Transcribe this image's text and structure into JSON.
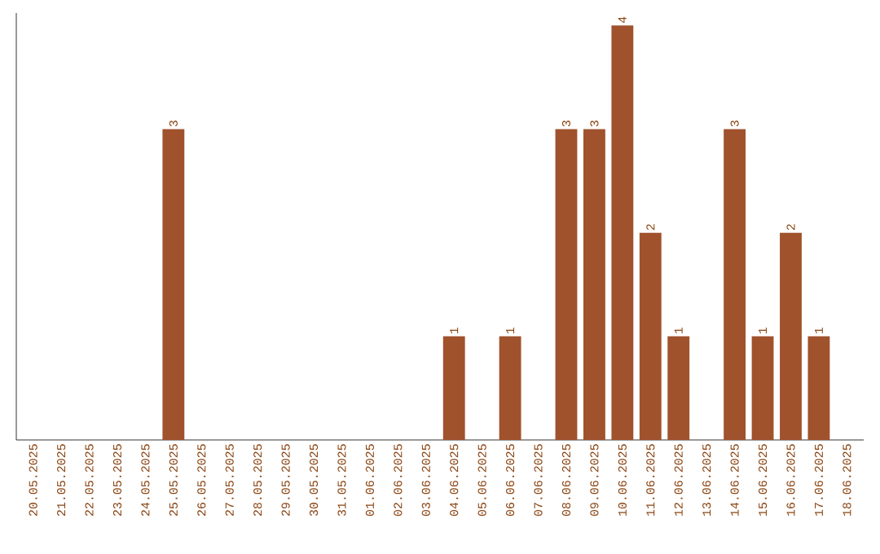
{
  "chart_data": {
    "type": "bar",
    "color": "#a0522d",
    "categories": [
      "20.05.2025",
      "21.05.2025",
      "22.05.2025",
      "23.05.2025",
      "24.05.2025",
      "25.05.2025",
      "26.05.2025",
      "27.05.2025",
      "28.05.2025",
      "29.05.2025",
      "30.05.2025",
      "31.05.2025",
      "01.06.2025",
      "02.06.2025",
      "03.06.2025",
      "04.06.2025",
      "05.06.2025",
      "06.06.2025",
      "07.06.2025",
      "08.06.2025",
      "09.06.2025",
      "10.06.2025",
      "11.06.2025",
      "12.06.2025",
      "13.06.2025",
      "14.06.2025",
      "15.06.2025",
      "16.06.2025",
      "17.06.2025",
      "18.06.2025"
    ],
    "values": [
      0,
      0,
      0,
      0,
      0,
      3,
      0,
      0,
      0,
      0,
      0,
      0,
      0,
      0,
      0,
      1,
      0,
      1,
      0,
      3,
      3,
      4,
      2,
      1,
      0,
      3,
      1,
      2,
      1,
      0
    ],
    "value_labels": [
      null,
      null,
      null,
      null,
      null,
      "3",
      null,
      null,
      null,
      null,
      null,
      null,
      null,
      null,
      null,
      "1",
      null,
      "1",
      null,
      "3",
      "3",
      "4",
      "2",
      "1",
      null,
      "3",
      "1",
      "2",
      "1",
      null
    ]
  }
}
